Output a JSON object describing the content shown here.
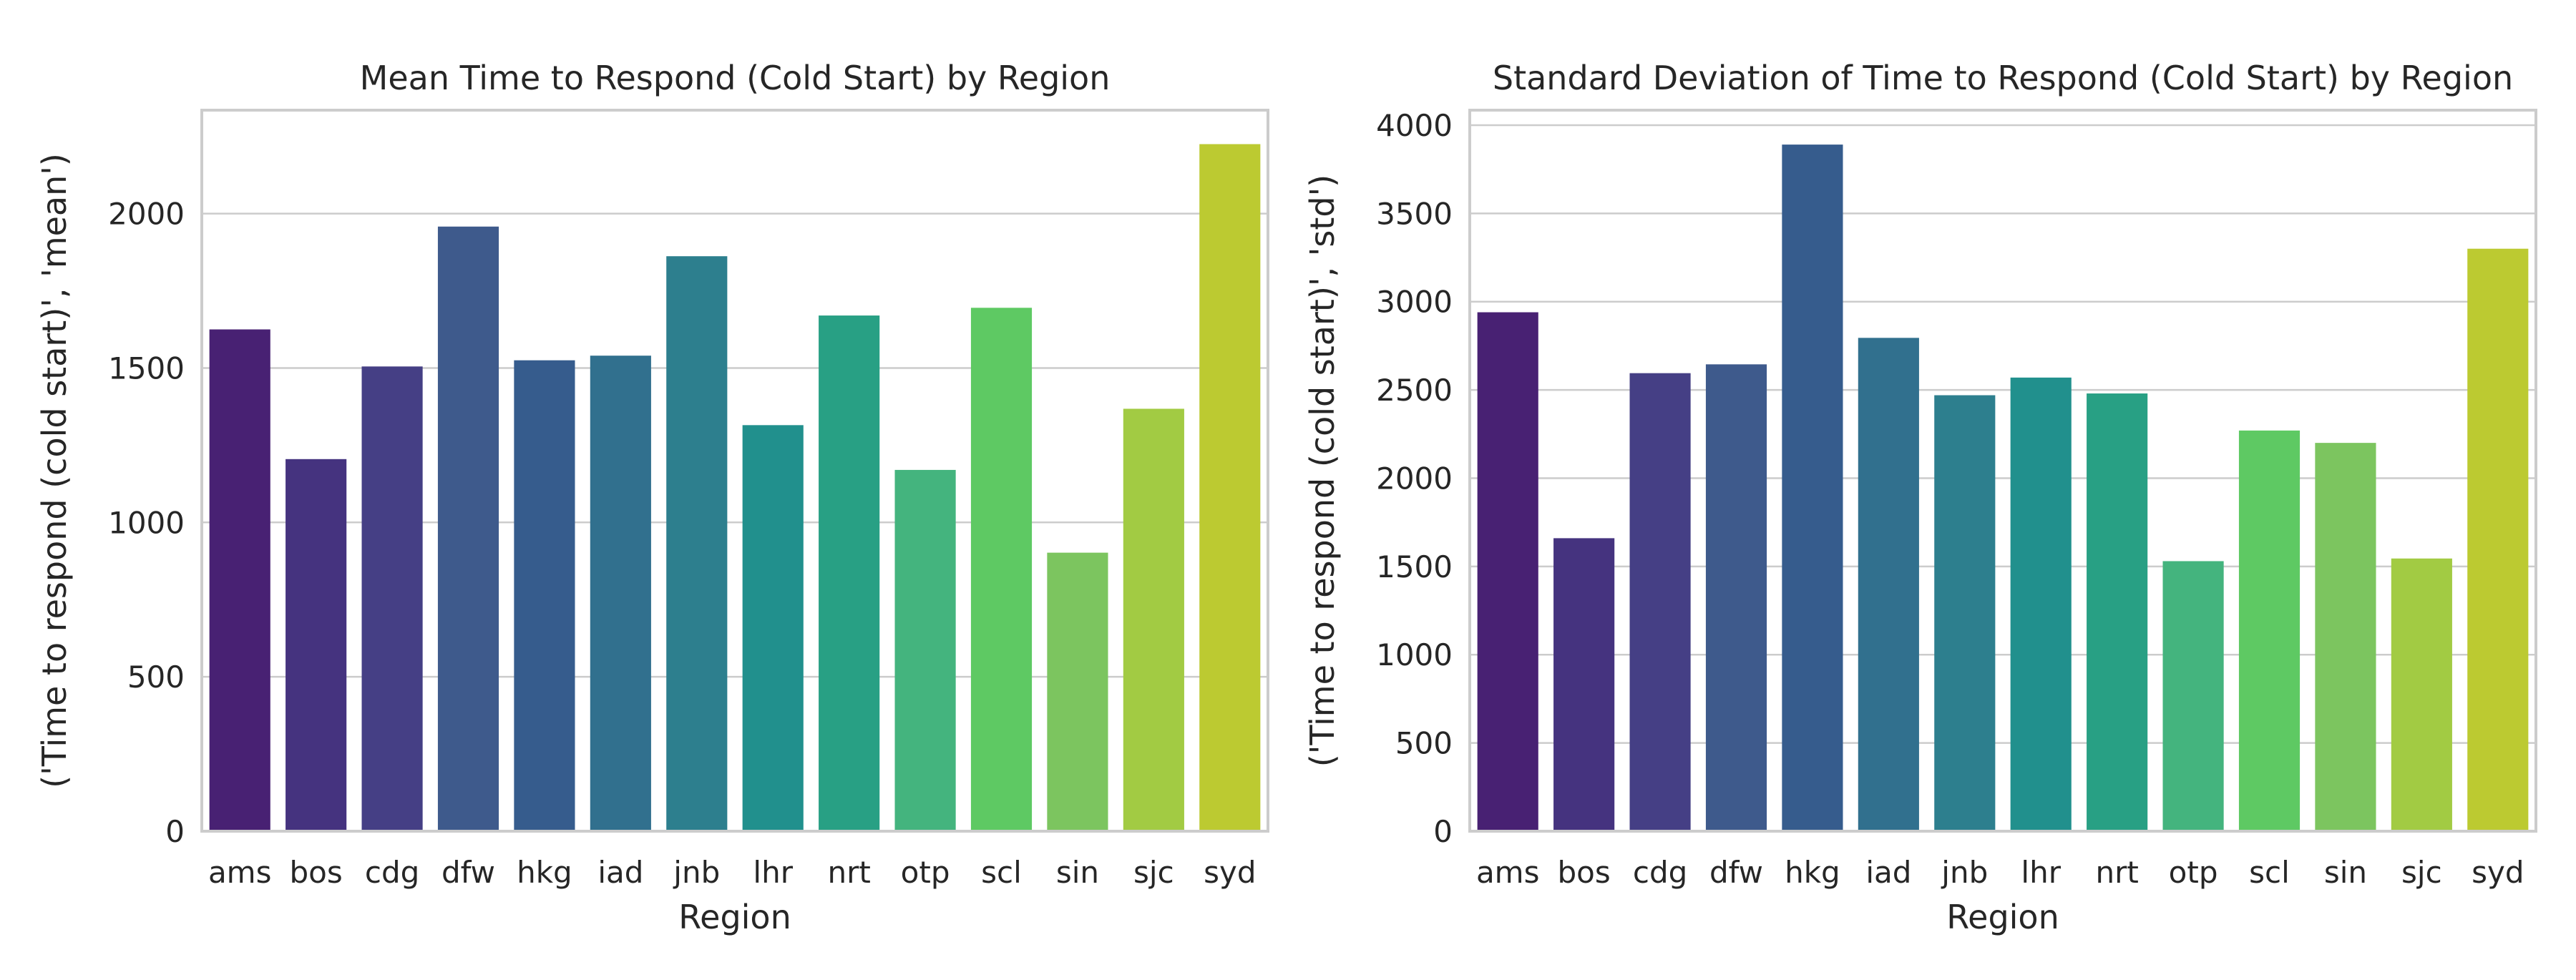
{
  "chart_data": [
    {
      "type": "bar",
      "title": "Mean Time to Respond (Cold Start) by Region",
      "xlabel": "Region",
      "ylabel": "('Time to respond (cold start)', 'mean')",
      "categories": [
        "ams",
        "bos",
        "cdg",
        "dfw",
        "hkg",
        "iad",
        "jnb",
        "lhr",
        "nrt",
        "otp",
        "scl",
        "sin",
        "sjc",
        "syd"
      ],
      "values": [
        1625,
        1205,
        1505,
        1958,
        1525,
        1540,
        1862,
        1315,
        1670,
        1170,
        1695,
        902,
        1368,
        2225
      ],
      "ylim": [
        0,
        2335
      ],
      "yticks": [
        0,
        500,
        1000,
        1500,
        2000
      ],
      "grid": true,
      "colors": [
        "#482173",
        "#45337f",
        "#453f85",
        "#3e5a8c",
        "#365c8d",
        "#31708e",
        "#2d7f8e",
        "#21908d",
        "#28a084",
        "#44b47e",
        "#5ec963",
        "#7cc55f",
        "#a2cb43",
        "#bcca31"
      ]
    },
    {
      "type": "bar",
      "title": "Standard Deviation of Time to Respond (Cold Start) by Region",
      "xlabel": "Region",
      "ylabel": "('Time to respond (cold start)', 'std')",
      "categories": [
        "ams",
        "bos",
        "cdg",
        "dfw",
        "hkg",
        "iad",
        "jnb",
        "lhr",
        "nrt",
        "otp",
        "scl",
        "sin",
        "sjc",
        "syd"
      ],
      "values": [
        2940,
        1660,
        2595,
        2645,
        3890,
        2795,
        2470,
        2570,
        2480,
        1530,
        2270,
        2200,
        1545,
        3300
      ],
      "ylim": [
        0,
        4085
      ],
      "yticks": [
        0,
        500,
        1000,
        1500,
        2000,
        2500,
        3000,
        3500,
        4000
      ],
      "grid": true,
      "colors": [
        "#482173",
        "#45337f",
        "#453f85",
        "#3e5a8c",
        "#365c8d",
        "#31708e",
        "#2d7f8e",
        "#21908d",
        "#28a084",
        "#44b47e",
        "#5ec963",
        "#7cc55f",
        "#a2cb43",
        "#bcca31"
      ]
    }
  ]
}
